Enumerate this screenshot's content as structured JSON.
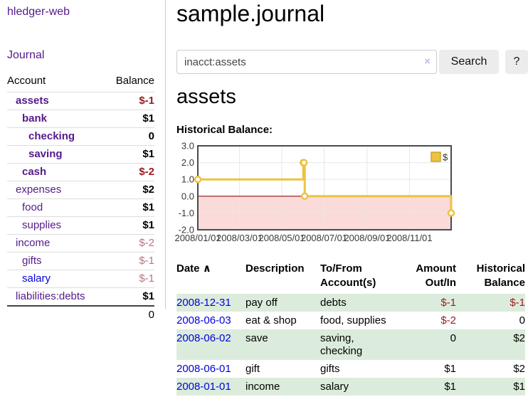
{
  "sidebar": {
    "brand": "hledger-web",
    "nav": {
      "journal": "Journal"
    },
    "accounts_table": {
      "headers": {
        "account": "Account",
        "balance": "Balance"
      },
      "rows": [
        {
          "name": "assets",
          "balance": "$-1"
        },
        {
          "name": "bank",
          "balance": "$1"
        },
        {
          "name": "checking",
          "balance": "0"
        },
        {
          "name": "saving",
          "balance": "$1"
        },
        {
          "name": "cash",
          "balance": "$-2"
        },
        {
          "name": "expenses",
          "balance": "$2"
        },
        {
          "name": "food",
          "balance": "$1"
        },
        {
          "name": "supplies",
          "balance": "$1"
        },
        {
          "name": "income",
          "balance": "$-2"
        },
        {
          "name": "gifts",
          "balance": "$-1"
        },
        {
          "name": "salary",
          "balance": "$-1"
        },
        {
          "name": "liabilities:debts",
          "balance": "$1"
        }
      ],
      "total": "0"
    }
  },
  "main": {
    "title": "sample.journal",
    "search": {
      "value": "inacct:assets",
      "clear_icon": "×",
      "search_button": "Search",
      "help_button": "?"
    },
    "account_heading": "assets",
    "chart_title": "Historical Balance:"
  },
  "chart_data": {
    "type": "line",
    "title": "Historical Balance",
    "legend": [
      {
        "label": "$",
        "color": "#edc240"
      }
    ],
    "x_axis": {
      "start_date": "2008-01-01",
      "end_date": "2008-12-31",
      "ticks": [
        "2008/01/01",
        "2008/03/01",
        "2008/05/01",
        "2008/07/01",
        "2008/09/01",
        "2008/11/01"
      ]
    },
    "y_axis": {
      "range": [
        -2,
        3
      ],
      "ticks": [
        "3.0",
        "2.0",
        "1.0",
        "0.0",
        "-1.0",
        "-2.0"
      ]
    },
    "series": [
      {
        "name": "$",
        "color": "#edc240",
        "steps": true,
        "points": [
          {
            "date": "2008-01-01",
            "value": 1
          },
          {
            "date": "2008-06-01",
            "value": 2
          },
          {
            "date": "2008-06-02",
            "value": 2
          },
          {
            "date": "2008-06-03",
            "value": 0
          },
          {
            "date": "2008-12-31",
            "value": -1
          }
        ]
      }
    ],
    "negative_region_color": "#fbdada",
    "zero_line_color": "#8f1010",
    "grid": true,
    "legend_position": "top-right"
  },
  "register": {
    "headers": {
      "date": "Date",
      "sort_icon": "∧",
      "description": "Description",
      "account_line1": "To/From",
      "account_line2": "Account(s)",
      "amount_line1": "Amount",
      "amount_line2": "Out/In",
      "balance_line1": "Historical",
      "balance_line2": "Balance"
    },
    "rows": [
      {
        "date": "2008-12-31",
        "description": "pay off",
        "accounts": "debts",
        "amount": "$-1",
        "balance": "$-1"
      },
      {
        "date": "2008-06-03",
        "description": "eat & shop",
        "accounts": "food, supplies",
        "amount": "$-2",
        "balance": "0"
      },
      {
        "date": "2008-06-02",
        "description": "save",
        "accounts": "saving,\nchecking",
        "amount": "0",
        "balance": "$2"
      },
      {
        "date": "2008-06-01",
        "description": "gift",
        "accounts": "gifts",
        "amount": "$1",
        "balance": "$2"
      },
      {
        "date": "2008-01-01",
        "description": "income",
        "accounts": "salary",
        "amount": "$1",
        "balance": "$1"
      }
    ]
  },
  "colors": {
    "link_purple": "#551a8b",
    "link_blue": "#0000dd",
    "negative_strong": "#9c1b1f",
    "negative_soft": "#bd747c",
    "row_green": "#dcecdc",
    "series_yellow": "#edc240",
    "chart_negative_region": "#fbdada",
    "chart_zero_line": "#8f1010",
    "button_bg": "#ececec"
  }
}
